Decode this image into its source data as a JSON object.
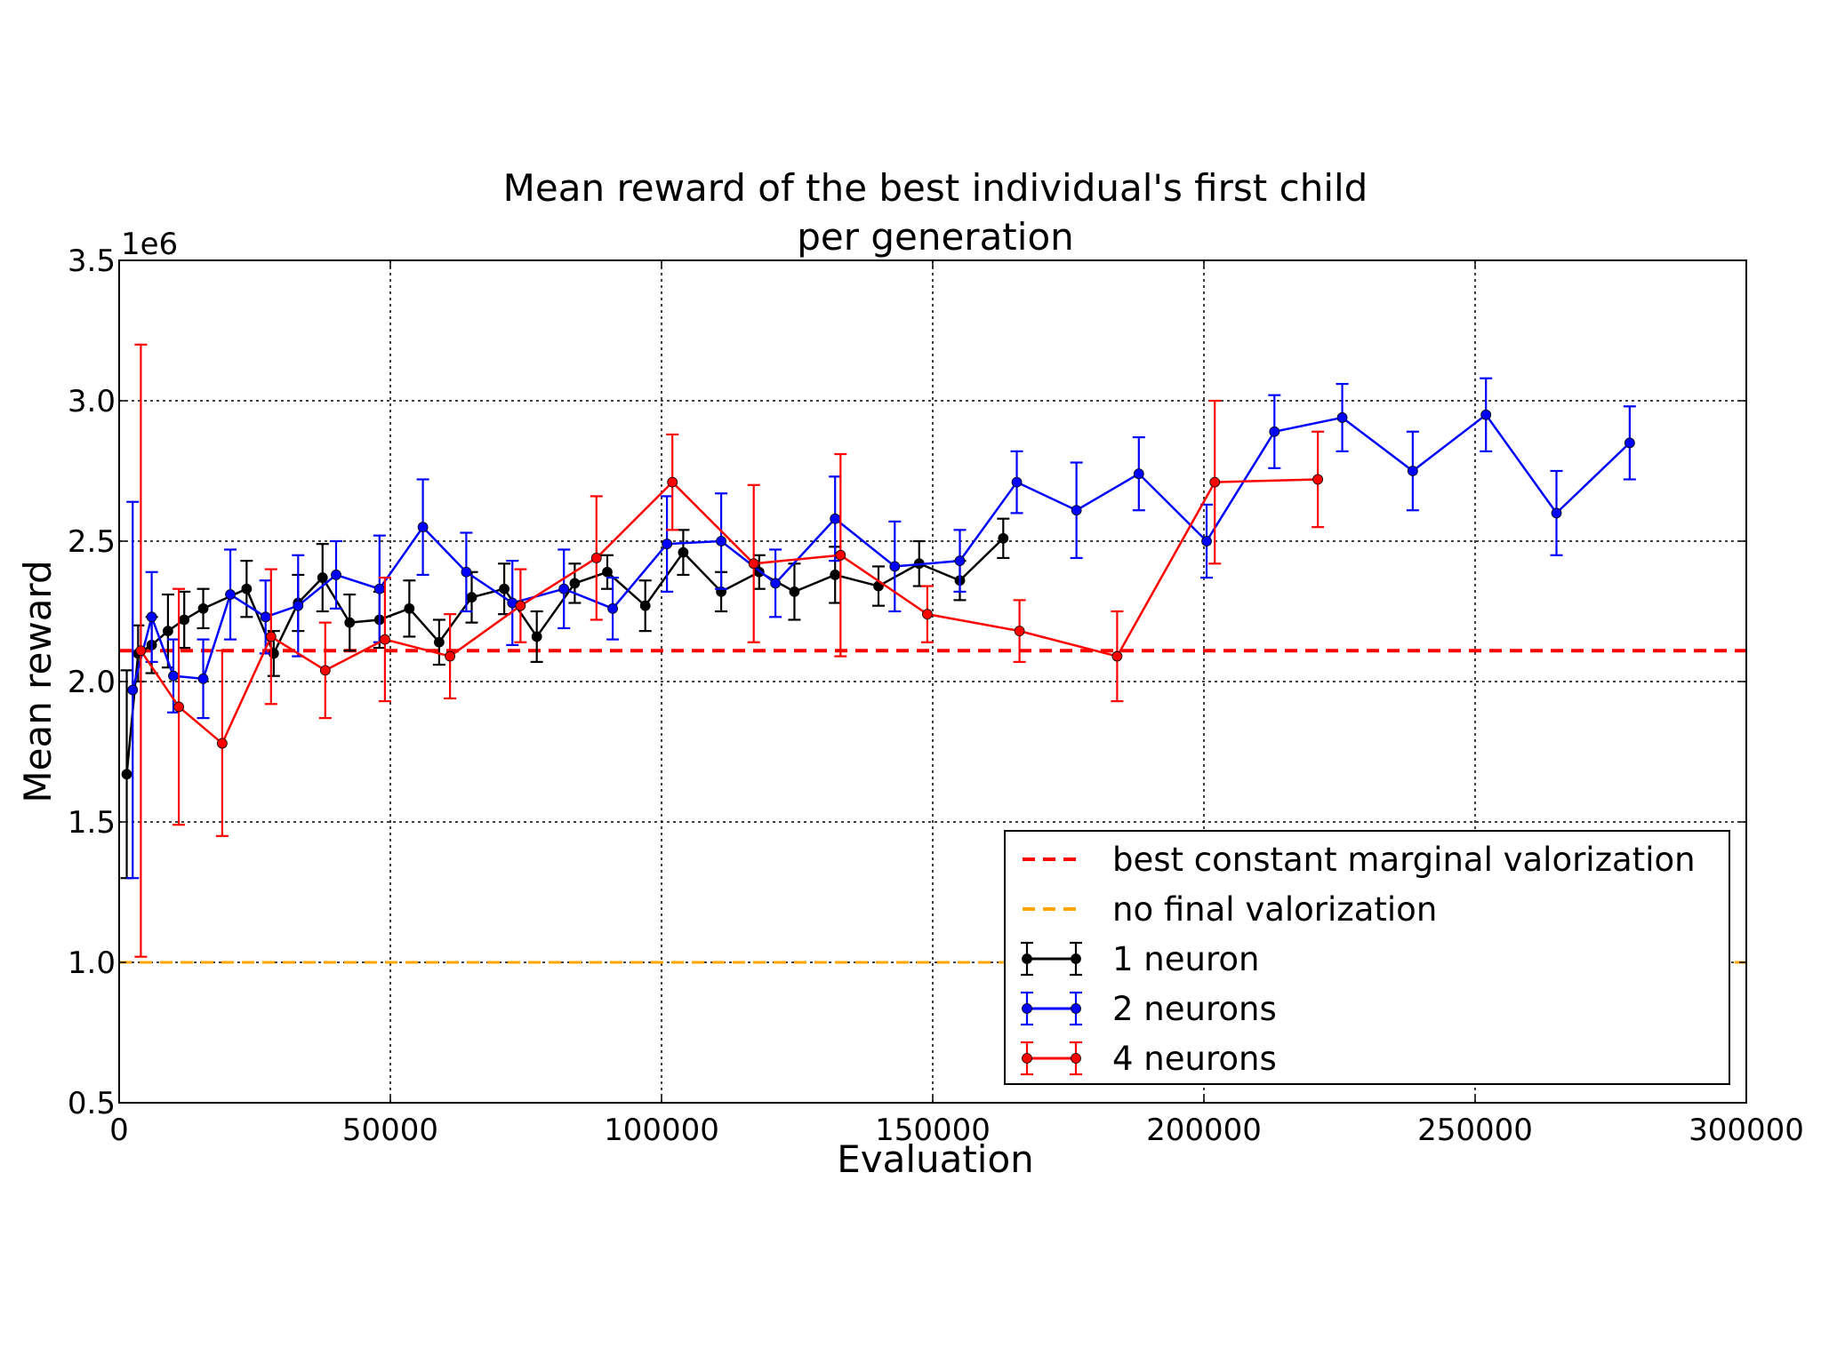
{
  "chart_data": {
    "type": "line",
    "title": "Mean reward of the best individual's first child",
    "subtitle": "per generation",
    "xlabel": "Evaluation",
    "ylabel": "Mean reward",
    "y_offset_label": "1e6",
    "xlim": [
      0,
      300000
    ],
    "ylim": [
      0.5,
      3.5
    ],
    "x_ticks": [
      0,
      50000,
      100000,
      150000,
      200000,
      250000,
      300000
    ],
    "x_tick_labels": [
      "0",
      "50000",
      "100000",
      "150000",
      "200000",
      "250000",
      "300000"
    ],
    "y_ticks": [
      0.5,
      1.0,
      1.5,
      2.0,
      2.5,
      3.0,
      3.5
    ],
    "y_tick_labels": [
      "0.5",
      "1.0",
      "1.5",
      "2.0",
      "2.5",
      "3.0",
      "3.5"
    ],
    "grid": true,
    "legend_position": "bottom-right",
    "reference_lines": [
      {
        "name": "best constant marginal valorization",
        "y": 2.11,
        "color": "#ff0000",
        "style": "dashed"
      },
      {
        "name": "no final valorization",
        "y": 1.0,
        "color": "#ffa500",
        "style": "dashed"
      }
    ],
    "series": [
      {
        "name": "1 neuron",
        "color": "#000000",
        "points": [
          {
            "x": 1400,
            "y": 1.67,
            "err": 0.37
          },
          {
            "x": 3500,
            "y": 2.1,
            "err": 0.1
          },
          {
            "x": 6000,
            "y": 2.13,
            "err": 0.1
          },
          {
            "x": 9000,
            "y": 2.18,
            "err": 0.13
          },
          {
            "x": 12000,
            "y": 2.22,
            "err": 0.1
          },
          {
            "x": 15500,
            "y": 2.26,
            "err": 0.07
          },
          {
            "x": 23500,
            "y": 2.33,
            "err": 0.1
          },
          {
            "x": 28500,
            "y": 2.1,
            "err": 0.08
          },
          {
            "x": 33000,
            "y": 2.28,
            "err": 0.1
          },
          {
            "x": 37500,
            "y": 2.37,
            "err": 0.12
          },
          {
            "x": 42500,
            "y": 2.21,
            "err": 0.1
          },
          {
            "x": 48000,
            "y": 2.22,
            "err": 0.1
          },
          {
            "x": 53500,
            "y": 2.26,
            "err": 0.1
          },
          {
            "x": 59000,
            "y": 2.14,
            "err": 0.08
          },
          {
            "x": 65000,
            "y": 2.3,
            "err": 0.09
          },
          {
            "x": 71000,
            "y": 2.33,
            "err": 0.09
          },
          {
            "x": 77000,
            "y": 2.16,
            "err": 0.09
          },
          {
            "x": 84000,
            "y": 2.35,
            "err": 0.07
          },
          {
            "x": 90000,
            "y": 2.39,
            "err": 0.06
          },
          {
            "x": 97000,
            "y": 2.27,
            "err": 0.09
          },
          {
            "x": 104000,
            "y": 2.46,
            "err": 0.08
          },
          {
            "x": 111000,
            "y": 2.32,
            "err": 0.07
          },
          {
            "x": 118000,
            "y": 2.39,
            "err": 0.06
          },
          {
            "x": 124500,
            "y": 2.32,
            "err": 0.1
          },
          {
            "x": 132000,
            "y": 2.38,
            "err": 0.1
          },
          {
            "x": 140000,
            "y": 2.34,
            "err": 0.07
          },
          {
            "x": 147500,
            "y": 2.42,
            "err": 0.08
          },
          {
            "x": 155000,
            "y": 2.36,
            "err": 0.07
          },
          {
            "x": 163000,
            "y": 2.51,
            "err": 0.07
          }
        ]
      },
      {
        "name": "2 neurons",
        "color": "#0000ff",
        "points": [
          {
            "x": 2500,
            "y": 1.97,
            "err": 0.67
          },
          {
            "x": 6000,
            "y": 2.23,
            "err": 0.16
          },
          {
            "x": 10000,
            "y": 2.02,
            "err": 0.13
          },
          {
            "x": 15500,
            "y": 2.01,
            "err": 0.14
          },
          {
            "x": 20500,
            "y": 2.31,
            "err": 0.16
          },
          {
            "x": 27000,
            "y": 2.23,
            "err": 0.13
          },
          {
            "x": 33000,
            "y": 2.27,
            "err": 0.18
          },
          {
            "x": 40000,
            "y": 2.38,
            "err": 0.12
          },
          {
            "x": 48000,
            "y": 2.33,
            "err": 0.19
          },
          {
            "x": 56000,
            "y": 2.55,
            "err": 0.17
          },
          {
            "x": 64000,
            "y": 2.39,
            "err": 0.14
          },
          {
            "x": 72500,
            "y": 2.28,
            "err": 0.15
          },
          {
            "x": 82000,
            "y": 2.33,
            "err": 0.14
          },
          {
            "x": 91000,
            "y": 2.26,
            "err": 0.11
          },
          {
            "x": 101000,
            "y": 2.49,
            "err": 0.17
          },
          {
            "x": 111000,
            "y": 2.5,
            "err": 0.17
          },
          {
            "x": 121000,
            "y": 2.35,
            "err": 0.12
          },
          {
            "x": 132000,
            "y": 2.58,
            "err": 0.15
          },
          {
            "x": 143000,
            "y": 2.41,
            "err": 0.16
          },
          {
            "x": 155000,
            "y": 2.43,
            "err": 0.11
          },
          {
            "x": 165500,
            "y": 2.71,
            "err": 0.11
          },
          {
            "x": 176500,
            "y": 2.61,
            "err": 0.17
          },
          {
            "x": 188000,
            "y": 2.74,
            "err": 0.13
          },
          {
            "x": 200500,
            "y": 2.5,
            "err": 0.13
          },
          {
            "x": 213000,
            "y": 2.89,
            "err": 0.13
          },
          {
            "x": 225500,
            "y": 2.94,
            "err": 0.12
          },
          {
            "x": 238500,
            "y": 2.75,
            "err": 0.14
          },
          {
            "x": 252000,
            "y": 2.95,
            "err": 0.13
          },
          {
            "x": 265000,
            "y": 2.6,
            "err": 0.15
          },
          {
            "x": 278500,
            "y": 2.85,
            "err": 0.13
          }
        ]
      },
      {
        "name": "4 neurons",
        "color": "#ff0000",
        "points": [
          {
            "x": 4000,
            "y": 2.11,
            "err": 1.09
          },
          {
            "x": 11000,
            "y": 1.91,
            "err": 0.42
          },
          {
            "x": 19000,
            "y": 1.78,
            "err": 0.33
          },
          {
            "x": 28000,
            "y": 2.16,
            "err": 0.24
          },
          {
            "x": 38000,
            "y": 2.04,
            "err": 0.17
          },
          {
            "x": 49000,
            "y": 2.15,
            "err": 0.22
          },
          {
            "x": 61000,
            "y": 2.09,
            "err": 0.15
          },
          {
            "x": 74000,
            "y": 2.27,
            "err": 0.13
          },
          {
            "x": 88000,
            "y": 2.44,
            "err": 0.22
          },
          {
            "x": 102000,
            "y": 2.71,
            "err": 0.17
          },
          {
            "x": 117000,
            "y": 2.42,
            "err": 0.28
          },
          {
            "x": 133000,
            "y": 2.45,
            "err": 0.36
          },
          {
            "x": 149000,
            "y": 2.24,
            "err": 0.1
          },
          {
            "x": 166000,
            "y": 2.18,
            "err": 0.11
          },
          {
            "x": 184000,
            "y": 2.09,
            "err": 0.16
          },
          {
            "x": 202000,
            "y": 2.71,
            "err": 0.29
          },
          {
            "x": 221000,
            "y": 2.72,
            "err": 0.17
          }
        ]
      }
    ]
  }
}
